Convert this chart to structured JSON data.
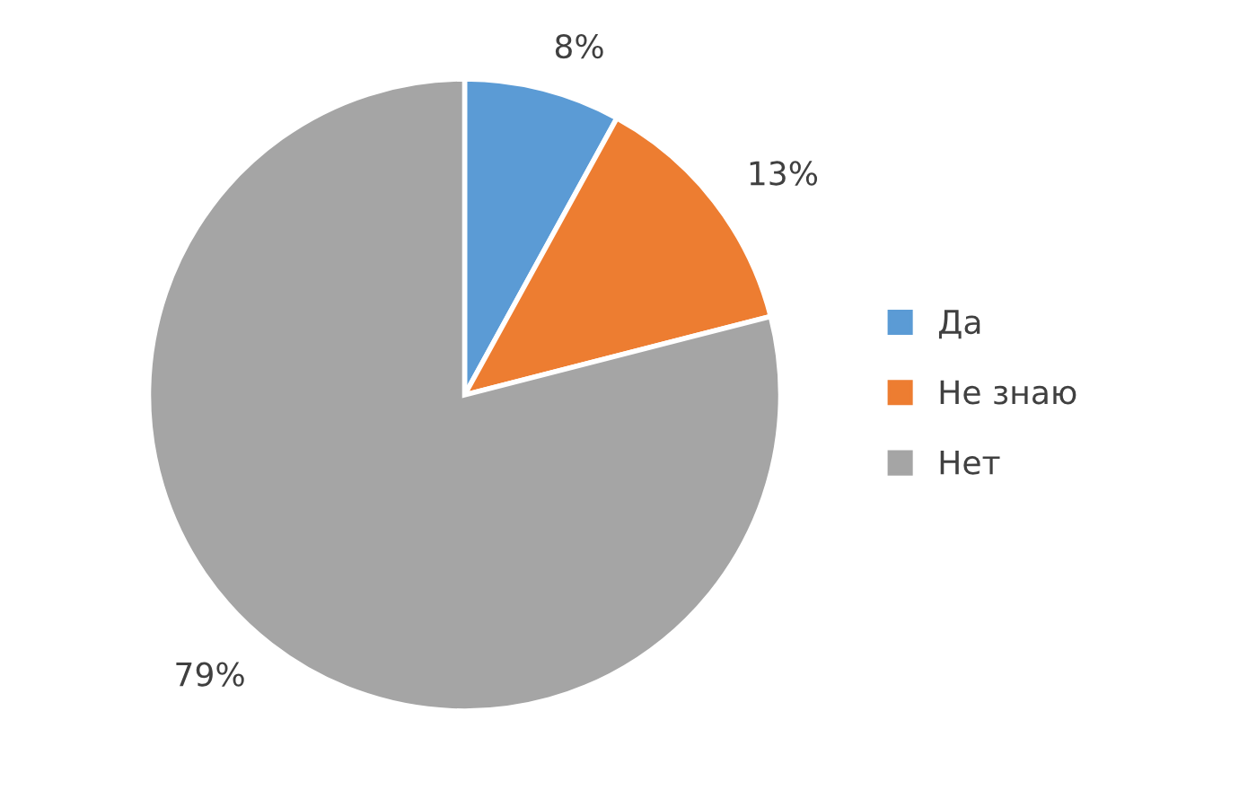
{
  "chart_data": {
    "type": "pie",
    "categories": [
      "Да",
      "Не знаю",
      "Нет"
    ],
    "values": [
      8,
      13,
      79
    ],
    "colors": [
      "#5b9bd5",
      "#ed7d31",
      "#a5a5a5"
    ],
    "value_labels": [
      "8%",
      "13%",
      "79%"
    ],
    "legend": "right"
  }
}
